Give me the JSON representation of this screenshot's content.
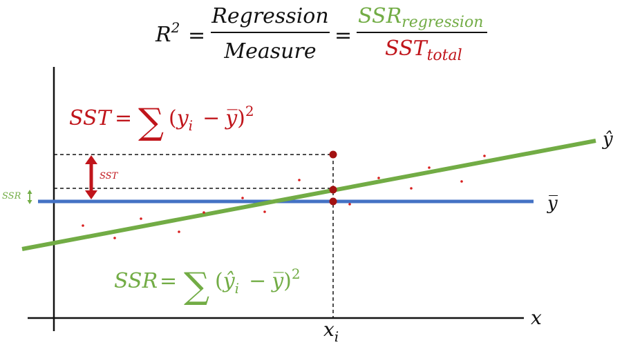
{
  "colors": {
    "black": "#111111",
    "red": "#c0151b",
    "green": "#72ac45",
    "blue": "#4472c4",
    "point_red": "#d81e1e",
    "dark_red_point": "#a31212"
  },
  "formula": {
    "r_label": "R",
    "r_exp": "2",
    "eq1": "=",
    "numerator": "Regression",
    "denominator": "Measure",
    "eq2": "=",
    "ssr_base": "SSR",
    "ssr_sub": "regression",
    "sst_base": "SST",
    "sst_sub": "total"
  },
  "sst_formula": {
    "lhs": "SST",
    "eq": "=",
    "sum": "∑",
    "open": "(",
    "y": "y",
    "y_sub": "i",
    "minus": "−",
    "ybar": "y̅",
    "close": ")",
    "exp": "2"
  },
  "ssr_formula": {
    "lhs": "SSR",
    "eq": "=",
    "sum": "∑",
    "open": "(",
    "yhat": "ŷ",
    "yhat_sub": "i",
    "minus": "−",
    "ybar": "y̅",
    "close": ")",
    "exp": "2"
  },
  "labels": {
    "yhat": "ŷ",
    "ybar": "y̅",
    "x_axis": "x",
    "xi": "x",
    "xi_sub": "i",
    "sst_small": "SST",
    "ssr_small": "SSR"
  }
}
